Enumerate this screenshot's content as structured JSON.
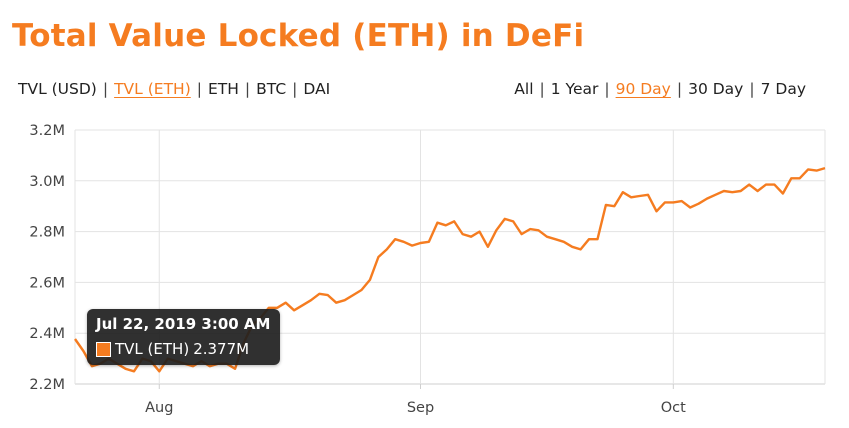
{
  "title": "Total Value Locked (ETH) in DeFi",
  "currency_tabs": [
    {
      "label": "TVL (USD)",
      "active": false
    },
    {
      "label": "TVL (ETH)",
      "active": true
    },
    {
      "label": "ETH",
      "active": false
    },
    {
      "label": "BTC",
      "active": false
    },
    {
      "label": "DAI",
      "active": false
    }
  ],
  "range_tabs": [
    {
      "label": "All",
      "active": false
    },
    {
      "label": "1 Year",
      "active": false
    },
    {
      "label": "90 Day",
      "active": true
    },
    {
      "label": "30 Day",
      "active": false
    },
    {
      "label": "7 Day",
      "active": false
    }
  ],
  "separator": "|",
  "tooltip": {
    "date": "Jul 22, 2019 3:00 AM",
    "series_label": "TVL (ETH)",
    "value": "2.377M"
  },
  "colors": {
    "accent": "#f57c20",
    "grid": "#e3e3e3",
    "axis": "#cfcfcf"
  },
  "chart_data": {
    "type": "line",
    "title": "Total Value Locked (ETH) in DeFi",
    "xlabel": "",
    "ylabel": "",
    "ylim": [
      2.2,
      3.2
    ],
    "y_unit": "M",
    "y_ticks": [
      "2.2M",
      "2.4M",
      "2.6M",
      "2.8M",
      "3.0M",
      "3.2M"
    ],
    "y_tick_values": [
      2.2,
      2.4,
      2.6,
      2.8,
      3.0,
      3.2
    ],
    "x_ticks": [
      "Aug",
      "Sep",
      "Oct"
    ],
    "x_tick_dates": [
      "2019-08-01",
      "2019-09-01",
      "2019-10-01"
    ],
    "xlim": [
      "2019-07-22",
      "2019-10-19"
    ],
    "grid": true,
    "legend": "none",
    "series": [
      {
        "name": "TVL (ETH)",
        "x": [
          "2019-07-22",
          "2019-07-23",
          "2019-07-24",
          "2019-07-25",
          "2019-07-26",
          "2019-07-27",
          "2019-07-28",
          "2019-07-29",
          "2019-07-30",
          "2019-07-31",
          "2019-08-01",
          "2019-08-02",
          "2019-08-03",
          "2019-08-04",
          "2019-08-05",
          "2019-08-06",
          "2019-08-07",
          "2019-08-08",
          "2019-08-09",
          "2019-08-10",
          "2019-08-11",
          "2019-08-12",
          "2019-08-13",
          "2019-08-14",
          "2019-08-15",
          "2019-08-16",
          "2019-08-17",
          "2019-08-18",
          "2019-08-19",
          "2019-08-20",
          "2019-08-21",
          "2019-08-22",
          "2019-08-23",
          "2019-08-24",
          "2019-08-25",
          "2019-08-26",
          "2019-08-27",
          "2019-08-28",
          "2019-08-29",
          "2019-08-30",
          "2019-08-31",
          "2019-09-01",
          "2019-09-02",
          "2019-09-03",
          "2019-09-04",
          "2019-09-05",
          "2019-09-06",
          "2019-09-07",
          "2019-09-08",
          "2019-09-09",
          "2019-09-10",
          "2019-09-11",
          "2019-09-12",
          "2019-09-13",
          "2019-09-14",
          "2019-09-15",
          "2019-09-16",
          "2019-09-17",
          "2019-09-18",
          "2019-09-19",
          "2019-09-20",
          "2019-09-21",
          "2019-09-22",
          "2019-09-23",
          "2019-09-24",
          "2019-09-25",
          "2019-09-26",
          "2019-09-27",
          "2019-09-28",
          "2019-09-29",
          "2019-09-30",
          "2019-10-01",
          "2019-10-02",
          "2019-10-03",
          "2019-10-04",
          "2019-10-05",
          "2019-10-06",
          "2019-10-07",
          "2019-10-08",
          "2019-10-09",
          "2019-10-10",
          "2019-10-11",
          "2019-10-12",
          "2019-10-13",
          "2019-10-14",
          "2019-10-15",
          "2019-10-16",
          "2019-10-17",
          "2019-10-18",
          "2019-10-19"
        ],
        "values": [
          2.377,
          2.33,
          2.27,
          2.28,
          2.3,
          2.28,
          2.26,
          2.25,
          2.3,
          2.29,
          2.25,
          2.3,
          2.29,
          2.28,
          2.27,
          2.29,
          2.27,
          2.28,
          2.28,
          2.26,
          2.36,
          2.43,
          2.46,
          2.5,
          2.5,
          2.52,
          2.49,
          2.51,
          2.53,
          2.555,
          2.55,
          2.52,
          2.53,
          2.55,
          2.57,
          2.61,
          2.7,
          2.73,
          2.77,
          2.76,
          2.745,
          2.755,
          2.76,
          2.835,
          2.825,
          2.84,
          2.79,
          2.78,
          2.8,
          2.74,
          2.805,
          2.85,
          2.84,
          2.79,
          2.81,
          2.805,
          2.78,
          2.77,
          2.76,
          2.74,
          2.73,
          2.77,
          2.77,
          2.905,
          2.9,
          2.955,
          2.935,
          2.94,
          2.945,
          2.88,
          2.915,
          2.915,
          2.92,
          2.895,
          2.91,
          2.93,
          2.945,
          2.96,
          2.955,
          2.96,
          2.985,
          2.96,
          2.985,
          2.985,
          2.95,
          3.01,
          3.01,
          3.045,
          3.04,
          3.05
        ]
      }
    ]
  }
}
